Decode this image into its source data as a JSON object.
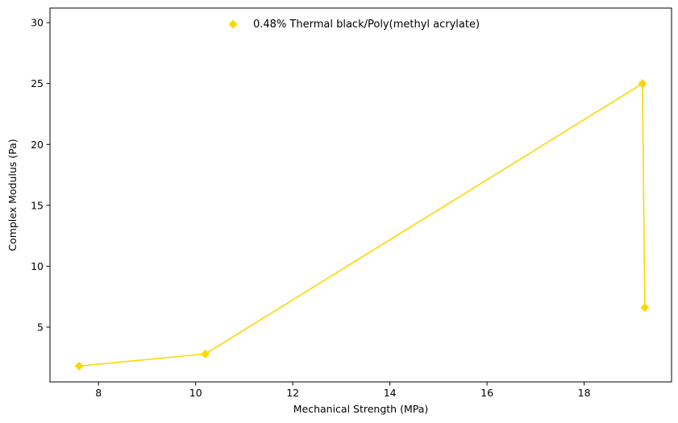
{
  "chart_data": {
    "type": "line",
    "xlabel": "Mechanical Strength (MPa)",
    "ylabel": "Complex Modulus (Pa)",
    "xlim": [
      7.0,
      19.8
    ],
    "ylim": [
      0.5,
      31.2
    ],
    "xticks": [
      8,
      10,
      12,
      14,
      16,
      18
    ],
    "yticks": [
      5,
      10,
      15,
      20,
      25,
      30
    ],
    "grid": false,
    "legend_position": "top-center",
    "series": [
      {
        "name": "0.48% Thermal black/Poly(methyl acrylate)",
        "color": "#FFD700",
        "marker": "diamond",
        "x": [
          7.6,
          10.2,
          19.2,
          19.25
        ],
        "y": [
          1.8,
          2.8,
          25.0,
          6.6
        ]
      }
    ]
  }
}
